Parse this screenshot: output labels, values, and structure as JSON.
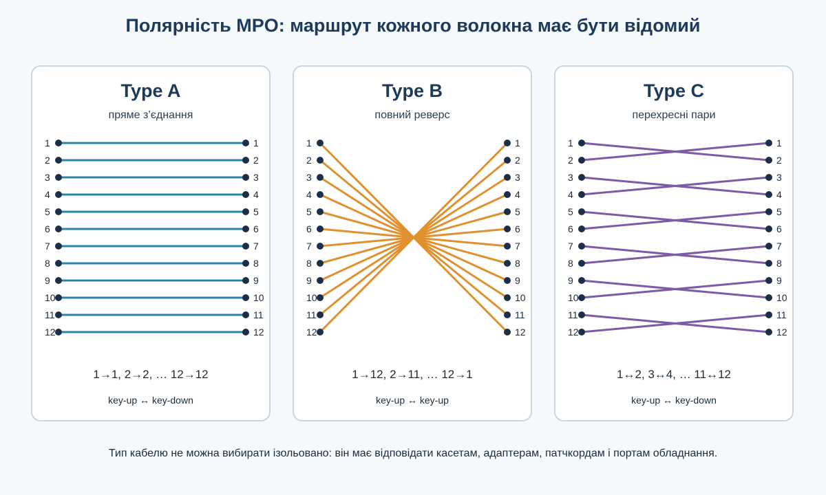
{
  "title": "Полярність MPO: маршрут кожного волокна має бути відомий",
  "fiber_numbers": [
    "1",
    "2",
    "3",
    "4",
    "5",
    "6",
    "7",
    "8",
    "9",
    "10",
    "11",
    "12"
  ],
  "node_color": "#1b2f4a",
  "panels": [
    {
      "title": "Type A",
      "subtitle": "пряме з’єднання",
      "mapping": "1→1, 2→2, … 12→12",
      "keying": "key-up ↔ key-down",
      "color": "#2a86a8",
      "connections": [
        1,
        2,
        3,
        4,
        5,
        6,
        7,
        8,
        9,
        10,
        11,
        12
      ]
    },
    {
      "title": "Type B",
      "subtitle": "повний реверс",
      "mapping": "1→12, 2→11, … 12→1",
      "keying": "key-up ↔ key-up",
      "color": "#e0902f",
      "connections": [
        12,
        11,
        10,
        9,
        8,
        7,
        6,
        5,
        4,
        3,
        2,
        1
      ]
    },
    {
      "title": "Type C",
      "subtitle": "перехресні пари",
      "mapping": "1↔2, 3↔4, … 11↔12",
      "keying": "key-up ↔ key-down",
      "color": "#7d5ba6",
      "connections": [
        2,
        1,
        4,
        3,
        6,
        5,
        8,
        7,
        10,
        9,
        12,
        11
      ]
    }
  ],
  "footer": "Тип кабелю не можна вибирати ізольовано: він має відповідати касетам, адаптерам, патчкордам і портам обладнання."
}
